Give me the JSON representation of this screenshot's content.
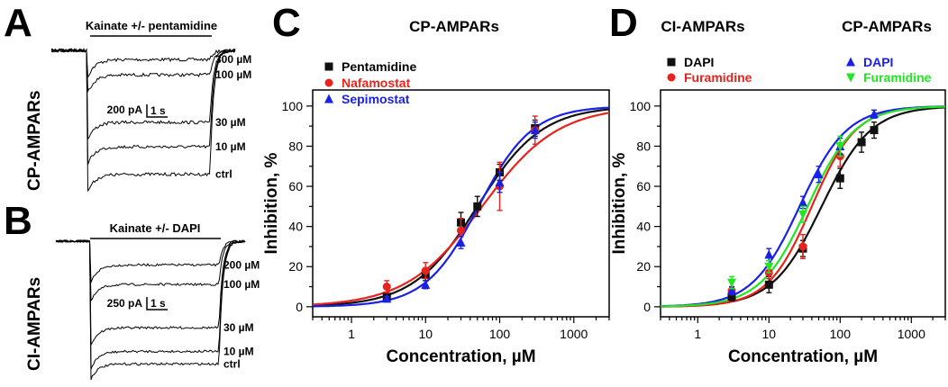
{
  "panels": {
    "A": {
      "letter": "A",
      "row_label": "CP-AMPARs",
      "drug_label": "Kainate +/- pentamidine",
      "scale_current": "200 pA",
      "scale_time": "1 s",
      "traces": [
        {
          "label": "300 µM",
          "steady_fraction": 0.06
        },
        {
          "label": "100 µM",
          "steady_fraction": 0.16
        },
        {
          "label": "30 µM",
          "steady_fraction": 0.47
        },
        {
          "label": "10 µM",
          "steady_fraction": 0.63
        },
        {
          "label": "ctrl",
          "steady_fraction": 0.81
        }
      ]
    },
    "B": {
      "letter": "B",
      "row_label": "CI-AMPARs",
      "drug_label": "Kainate +/- DAPI",
      "scale_current": "250 pA",
      "scale_time": "1 s",
      "traces": [
        {
          "label": "200 µM",
          "steady_fraction": 0.17
        },
        {
          "label": "100 µM",
          "steady_fraction": 0.31
        },
        {
          "label": "30 µM",
          "steady_fraction": 0.62
        },
        {
          "label": "10 µM",
          "steady_fraction": 0.79
        },
        {
          "label": "ctrl",
          "steady_fraction": 0.88
        }
      ]
    },
    "C": {
      "letter": "C",
      "title": "CP-AMPARs"
    },
    "D": {
      "letter": "D",
      "title_left": "CI-AMPARs",
      "title_right": "CP-AMPARs"
    }
  },
  "colors": {
    "black": "#111111",
    "red": "#e8221d",
    "blue": "#1a21e6",
    "green": "#21e621"
  },
  "chart_data": [
    {
      "id": "C",
      "type": "scatter",
      "title": "CP-AMPARs",
      "xlabel": "Concentration, µM",
      "ylabel": "Inhibition, %",
      "xscale": "log",
      "xlim": [
        0.3,
        3000
      ],
      "ylim": [
        -5,
        108
      ],
      "xticks": [
        1,
        10,
        100,
        1000
      ],
      "xtick_labels": [
        "1",
        "10",
        "100",
        "1000"
      ],
      "yticks": [
        0,
        20,
        40,
        60,
        80,
        100
      ],
      "ytick_labels": [
        "0",
        "20",
        "40",
        "60",
        "80",
        "100"
      ],
      "series": [
        {
          "name": "Pentamidine",
          "color": "#111111",
          "marker": "square",
          "x": [
            3,
            10,
            30,
            50,
            100,
            300
          ],
          "y": [
            5,
            16,
            42,
            50,
            67,
            89
          ],
          "err": [
            2,
            3,
            5,
            5,
            4,
            4
          ],
          "ic50": 50,
          "hill": 1.0
        },
        {
          "name": "Nafamostat",
          "color": "#e8221d",
          "marker": "circle",
          "x": [
            3,
            10,
            30,
            100,
            300
          ],
          "y": [
            10,
            18,
            38,
            60,
            88
          ],
          "err": [
            3,
            4,
            6,
            12,
            7
          ],
          "ic50": 58,
          "hill": 0.85
        },
        {
          "name": "Sepimostat",
          "color": "#1a21e6",
          "marker": "triangle",
          "x": [
            3,
            10,
            30,
            100,
            300
          ],
          "y": [
            4,
            11,
            32,
            62,
            88
          ],
          "err": [
            1,
            2,
            3,
            5,
            4
          ],
          "ic50": 52,
          "hill": 1.2
        }
      ]
    },
    {
      "id": "D",
      "type": "scatter",
      "title": "CI-AMPARs / CP-AMPARs",
      "xlabel": "Concentration, µM",
      "ylabel": "Inhibition, %",
      "xscale": "log",
      "xlim": [
        0.3,
        3000
      ],
      "ylim": [
        -5,
        108
      ],
      "xticks": [
        1,
        10,
        100,
        1000
      ],
      "xtick_labels": [
        "1",
        "10",
        "100",
        "1000"
      ],
      "yticks": [
        0,
        20,
        40,
        60,
        80,
        100
      ],
      "ytick_labels": [
        "0",
        "20",
        "40",
        "60",
        "80",
        "100"
      ],
      "legend_groups": [
        "CI-AMPARs",
        "CP-AMPARs"
      ],
      "series": [
        {
          "name": "DAPI",
          "group": "CI-AMPARs",
          "color": "#111111",
          "marker": "square",
          "x": [
            3,
            10,
            30,
            100,
            200,
            300
          ],
          "y": [
            5,
            11,
            29,
            64,
            82,
            88
          ],
          "err": [
            2,
            4,
            4,
            5,
            5,
            4
          ],
          "ic50": 55,
          "hill": 1.25
        },
        {
          "name": "Furamidine",
          "group": "CI-AMPARs",
          "color": "#e8221d",
          "marker": "circle",
          "x": [
            3,
            10,
            30,
            100
          ],
          "y": [
            8,
            17,
            30,
            75
          ],
          "err": [
            2,
            3,
            6,
            5
          ],
          "ic50": 40,
          "hill": 1.4
        },
        {
          "name": "DAPI",
          "group": "CP-AMPARs",
          "color": "#1a21e6",
          "marker": "triangle",
          "x": [
            3,
            10,
            30,
            50,
            100,
            300
          ],
          "y": [
            8,
            26,
            52,
            66,
            80,
            96
          ],
          "err": [
            2,
            3,
            3,
            4,
            4,
            2
          ],
          "ic50": 27,
          "hill": 1.3
        },
        {
          "name": "Furamidine",
          "group": "CP-AMPARs",
          "color": "#21e621",
          "marker": "triangle-down",
          "x": [
            3,
            10,
            30,
            100
          ],
          "y": [
            12,
            20,
            46,
            80
          ],
          "err": [
            3,
            3,
            4,
            5
          ],
          "ic50": 35,
          "hill": 1.3
        }
      ]
    }
  ]
}
